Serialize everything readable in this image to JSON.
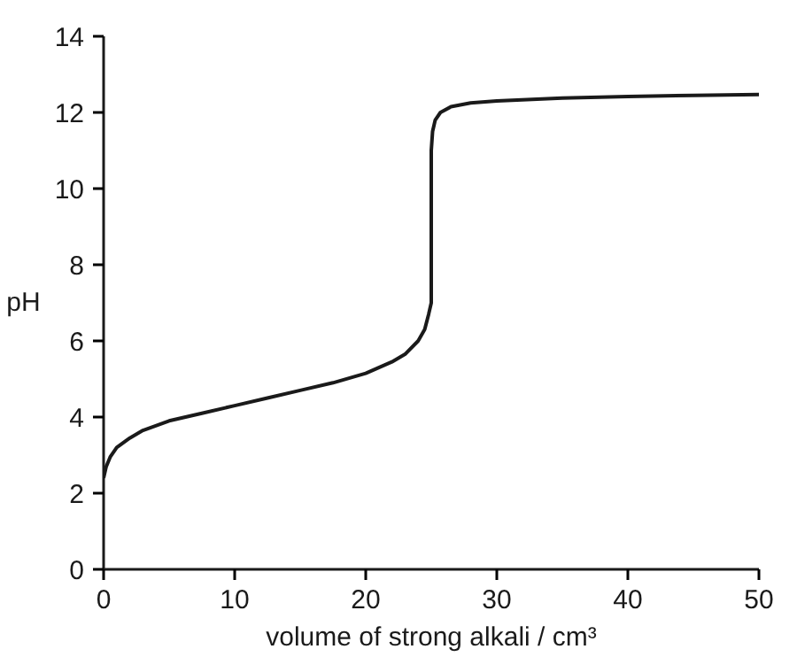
{
  "chart_data": {
    "type": "line",
    "xlabel": "volume of strong alkali / cm³",
    "ylabel": "pH",
    "x": [
      0,
      0.2,
      0.5,
      1,
      2,
      3,
      5,
      7.5,
      10,
      12.5,
      15,
      17.5,
      20,
      22,
      23,
      24,
      24.5,
      24.8,
      25,
      25,
      25.1,
      25.3,
      25.7,
      26.5,
      28,
      30,
      35,
      40,
      45,
      50
    ],
    "series": [
      {
        "color": "#1a1a1a",
        "values": [
          2.4,
          2.7,
          2.95,
          3.2,
          3.45,
          3.65,
          3.9,
          4.1,
          4.3,
          4.5,
          4.7,
          4.9,
          5.15,
          5.45,
          5.65,
          6.0,
          6.3,
          6.7,
          7.0,
          11.0,
          11.5,
          11.8,
          12.0,
          12.15,
          12.25,
          12.3,
          12.38,
          12.42,
          12.45,
          12.47
        ]
      }
    ],
    "xlim": [
      0,
      50
    ],
    "ylim": [
      0,
      14
    ],
    "xticks": [
      0,
      10,
      20,
      30,
      40,
      50
    ],
    "yticks": [
      0,
      2,
      4,
      6,
      8,
      10,
      12,
      14
    ],
    "grid": false,
    "marker": "none",
    "line_style": "solid"
  }
}
